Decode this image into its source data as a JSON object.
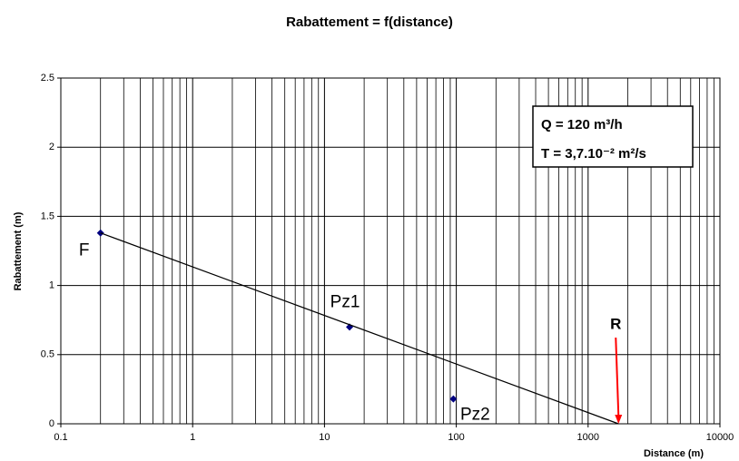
{
  "chart_data": {
    "type": "scatter",
    "title": "Rabattement = f(distance)",
    "xlabel": "Distance (m)",
    "ylabel": "Rabattement (m)",
    "xscale": "log",
    "xlim": [
      0.1,
      10000
    ],
    "xticks": [
      0.1,
      1,
      10,
      100,
      1000,
      10000
    ],
    "xminorticks": [
      0.2,
      0.3,
      0.4,
      0.5,
      0.6,
      0.7,
      0.8,
      0.9,
      2,
      3,
      4,
      5,
      6,
      7,
      8,
      9,
      20,
      30,
      40,
      50,
      60,
      70,
      80,
      90,
      200,
      300,
      400,
      500,
      600,
      700,
      800,
      900,
      2000,
      3000,
      4000,
      5000,
      6000,
      7000,
      8000,
      9000
    ],
    "ylim": [
      0,
      2.5
    ],
    "yticks": [
      0,
      0.5,
      1,
      1.5,
      2,
      2.5
    ],
    "grid": true,
    "series": [
      {
        "x": [
          0.2,
          15.5,
          95
        ],
        "values": [
          1.38,
          0.7,
          0.18
        ],
        "color": "#000080",
        "marker": "diamond",
        "point_labels": [
          "F",
          "Pz1",
          "Pz2"
        ]
      },
      {
        "x": [
          0.2,
          1700
        ],
        "values": [
          1.38,
          0
        ],
        "color": "#000000",
        "marker": "none",
        "line": true
      }
    ],
    "annotations": [
      {
        "text": "R",
        "color": "#ff0000"
      }
    ],
    "textbox": [
      "Q = 120 m³/h",
      "T = 3,7.10⁻² m²/s"
    ]
  }
}
